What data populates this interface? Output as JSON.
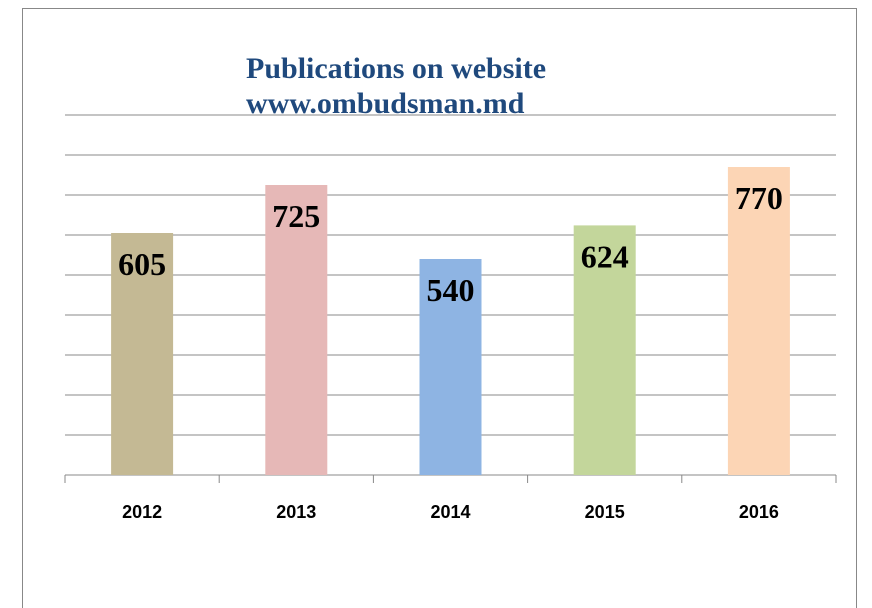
{
  "chart_data": {
    "type": "bar",
    "title": "Publications on website",
    "subtitle": "www.ombudsman.md",
    "categories": [
      "2012",
      "2013",
      "2014",
      "2015",
      "2016"
    ],
    "values": [
      605,
      725,
      540,
      624,
      770
    ],
    "colors": [
      "#c4b994",
      "#e6b8b7",
      "#8eb4e3",
      "#c3d69b",
      "#fcd5b5"
    ],
    "ylim": [
      0,
      900
    ],
    "yticks": [
      0,
      100,
      200,
      300,
      400,
      500,
      600,
      700,
      800,
      900
    ],
    "grid": true
  }
}
